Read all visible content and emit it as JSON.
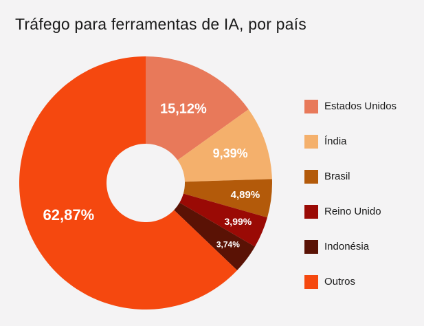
{
  "chart_data": {
    "type": "pie",
    "donut": true,
    "title": "Tráfego para ferramentas de IA, por país",
    "legend_position": "right",
    "slices": [
      {
        "name": "Estados Unidos",
        "value": 15.12,
        "label": "15,12%",
        "color": "#e8795a"
      },
      {
        "name": "Índia",
        "value": 9.39,
        "label": "9,39%",
        "color": "#f4b06c"
      },
      {
        "name": "Brasil",
        "value": 4.89,
        "label": "4,89%",
        "color": "#b35a0a"
      },
      {
        "name": "Reino Unido",
        "value": 3.99,
        "label": "3,99%",
        "color": "#9a0a05"
      },
      {
        "name": "Indonésia",
        "value": 3.74,
        "label": "3,74%",
        "color": "#5a1205"
      },
      {
        "name": "Outros",
        "value": 62.87,
        "label": "62,87%",
        "color": "#f5480f"
      }
    ]
  }
}
